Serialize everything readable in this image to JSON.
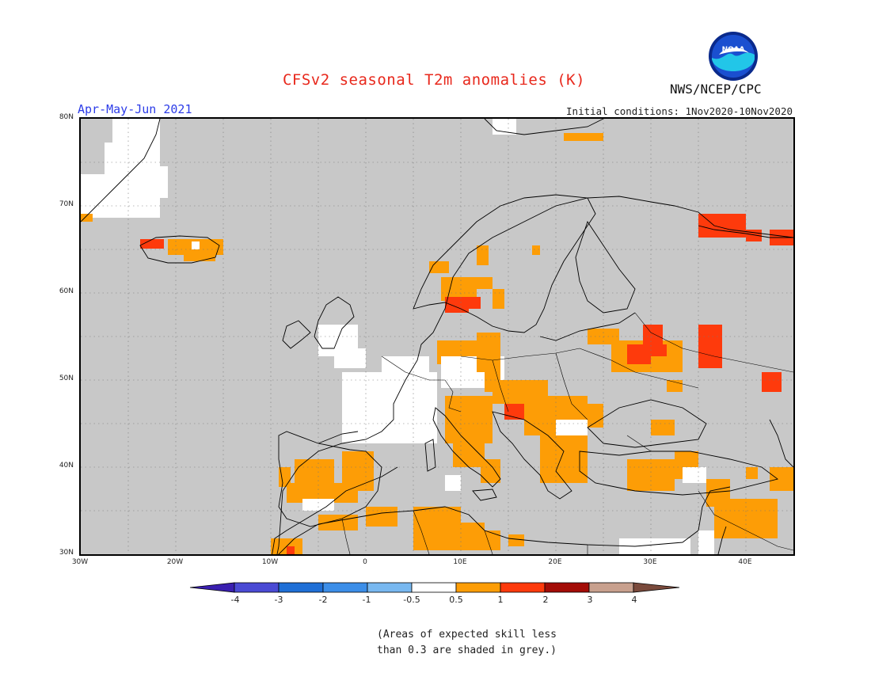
{
  "header": {
    "title": "CFSv2 seasonal T2m anomalies (K)",
    "period": "Apr-May-Jun 2021",
    "initial_conditions": "Initial conditions: 1Nov2020-10Nov2020",
    "agency": "NWS/NCEP/CPC",
    "logo_text": "NOAA"
  },
  "axes": {
    "lat_labels": [
      "80N",
      "70N",
      "60N",
      "50N",
      "40N",
      "30N"
    ],
    "lon_labels": [
      "30W",
      "20W",
      "10W",
      "0",
      "10E",
      "20E",
      "30E",
      "40E"
    ]
  },
  "legend": {
    "labels": [
      "-4",
      "-3",
      "-2",
      "-1",
      "-0.5",
      "0.5",
      "1",
      "2",
      "3",
      "4"
    ],
    "colors": [
      "#3a1fb0",
      "#4a4ad4",
      "#1f6fd6",
      "#3c8ee8",
      "#78b8f0",
      "#ffffff",
      "#fd9d06",
      "#fe3a0c",
      "#a30c06",
      "#c8a08e",
      "#7a4a3c"
    ],
    "grey_color": "#c8c8c8",
    "grey_note_line1": "(Areas of expected skill less",
    "grey_note_line2": "than 0.3 are shaded in grey.)"
  },
  "colors": {
    "title": "#e8281c",
    "period": "#2c3ce8",
    "land_border": "#000000"
  }
}
